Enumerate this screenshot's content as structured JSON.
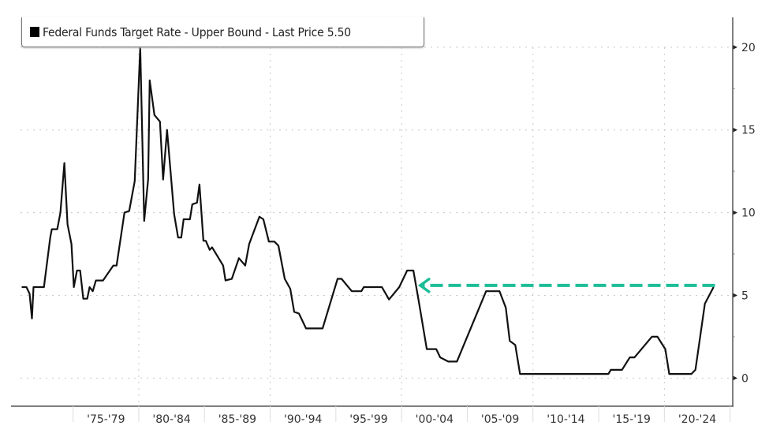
{
  "chart_data": {
    "type": "line",
    "title": "",
    "legend": {
      "label": "Federal Funds Target Rate - Upper Bound - Last Price 5.50",
      "placement": "top-left",
      "color": "#000000"
    },
    "xlabel": "",
    "ylabel": "",
    "xlim": [
      1971.0,
      2025.2
    ],
    "ylim": [
      -1.7,
      21.9
    ],
    "y_axis_side": "right",
    "yticks": [
      0,
      5,
      10,
      15,
      20
    ],
    "y_minor_ticks": [
      2.5,
      7.5,
      12.5,
      17.5
    ],
    "x_categories": [
      {
        "label": "'75-'79",
        "start": 1975,
        "end": 1980
      },
      {
        "label": "'80-'84",
        "start": 1980,
        "end": 1985
      },
      {
        "label": "'85-'89",
        "start": 1985,
        "end": 1990
      },
      {
        "label": "'90-'94",
        "start": 1990,
        "end": 1995
      },
      {
        "label": "'95-'99",
        "start": 1995,
        "end": 2000
      },
      {
        "label": "'00-'04",
        "start": 2000,
        "end": 2005
      },
      {
        "label": "'05-'09",
        "start": 2005,
        "end": 2010
      },
      {
        "label": "'10-'14",
        "start": 2010,
        "end": 2015
      },
      {
        "label": "'15-'19",
        "start": 2015,
        "end": 2020
      },
      {
        "label": "'20-'24",
        "start": 2020,
        "end": 2025
      }
    ],
    "x_gridlines": [
      1980,
      1990,
      2000,
      2010,
      2020
    ],
    "grid": true,
    "series": [
      {
        "name": "Federal Funds Target Rate - Upper Bound",
        "color": "#111111",
        "x": [
          1971.09,
          1971.45,
          1971.69,
          1971.87,
          1971.99,
          1972.78,
          1973.26,
          1973.38,
          1973.8,
          1974.04,
          1974.34,
          1974.58,
          1974.88,
          1975.06,
          1975.3,
          1975.54,
          1975.78,
          1976.08,
          1976.26,
          1976.5,
          1976.74,
          1977.28,
          1978.06,
          1978.31,
          1978.91,
          1979.27,
          1979.69,
          1980.11,
          1980.41,
          1980.71,
          1980.83,
          1981.19,
          1981.61,
          1981.85,
          1982.15,
          1982.33,
          1982.69,
          1982.99,
          1983.23,
          1983.41,
          1983.89,
          1984.07,
          1984.43,
          1984.62,
          1984.92,
          1985.1,
          1985.4,
          1985.58,
          1986.42,
          1986.6,
          1987.08,
          1987.62,
          1988.1,
          1988.4,
          1989.18,
          1989.48,
          1989.9,
          1990.32,
          1990.63,
          1991.11,
          1991.53,
          1991.83,
          1992.19,
          1992.73,
          1993.99,
          1995.13,
          1995.43,
          1996.21,
          1996.94,
          1997.12,
          1998.5,
          1999.04,
          1999.82,
          2000.42,
          2000.9,
          2001.32,
          2001.92,
          2002.64,
          2002.94,
          2003.55,
          2004.21,
          2006.43,
          2007.45,
          2007.93,
          2008.23,
          2008.65,
          2009.01,
          2015.74,
          2015.92,
          2016.77,
          2017.37,
          2017.73,
          2019.05,
          2019.47,
          2020.07,
          2020.37,
          2022.05,
          2022.36,
          2023.08,
          2023.74
        ],
        "y": [
          5.5,
          5.5,
          5.1,
          3.6,
          5.5,
          5.5,
          8.5,
          9.0,
          9.0,
          10.0,
          13.0,
          9.3,
          8.1,
          5.5,
          6.5,
          6.5,
          4.8,
          4.8,
          5.5,
          5.25,
          5.9,
          5.9,
          6.8,
          6.8,
          10.0,
          10.1,
          11.9,
          20.0,
          9.5,
          12.0,
          18.0,
          15.9,
          15.5,
          12.0,
          15.0,
          13.3,
          9.9,
          8.5,
          8.5,
          9.6,
          9.6,
          10.5,
          10.6,
          11.7,
          8.3,
          8.3,
          7.75,
          7.9,
          6.8,
          5.9,
          6.0,
          7.25,
          6.8,
          8.1,
          9.75,
          9.6,
          8.25,
          8.25,
          8.0,
          6.0,
          5.4,
          4.0,
          3.9,
          3.0,
          3.0,
          6.0,
          6.0,
          5.25,
          5.25,
          5.5,
          5.5,
          4.75,
          5.5,
          6.5,
          6.5,
          4.6,
          1.75,
          1.75,
          1.25,
          1.0,
          1.0,
          5.25,
          5.25,
          4.25,
          2.25,
          2.0,
          0.25,
          0.25,
          0.5,
          0.5,
          1.25,
          1.25,
          2.5,
          2.5,
          1.75,
          0.25,
          0.25,
          0.5,
          4.5,
          5.5
        ]
      }
    ],
    "annotations": [
      {
        "type": "dashed-arrow",
        "color": "#1dbd98",
        "value": 5.6,
        "from_x": 2023.85,
        "to_x": 2001.3
      }
    ]
  }
}
